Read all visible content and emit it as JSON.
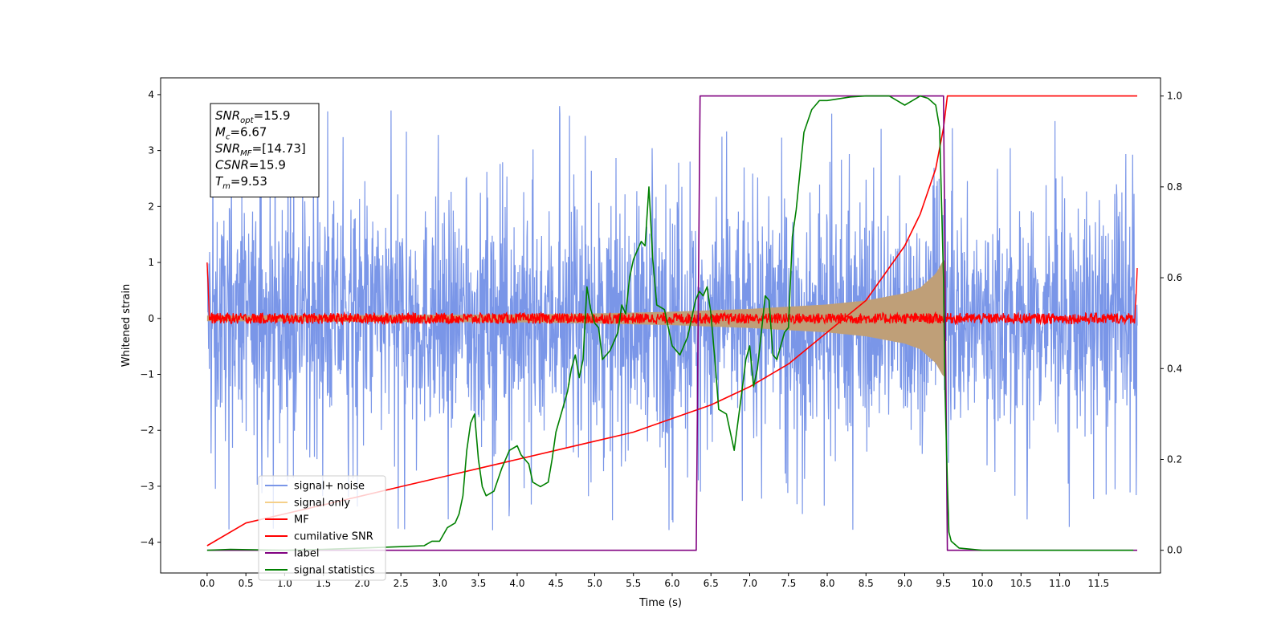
{
  "chart_data": {
    "type": "line",
    "xlabel": "Time (s)",
    "ylabel": "Whitened strain",
    "xlim": [
      -0.6,
      12.3
    ],
    "ylim": [
      -4.55,
      4.3
    ],
    "y2lim": [
      -0.05,
      1.04
    ],
    "x_ticks": [
      "0.0",
      "0.5",
      "1.0",
      "1.5",
      "2.0",
      "2.5",
      "3.0",
      "3.5",
      "4.0",
      "4.5",
      "5.0",
      "5.5",
      "6.0",
      "6.5",
      "7.0",
      "7.5",
      "8.0",
      "8.5",
      "9.0",
      "9.5",
      "10.0",
      "10.5",
      "11.0",
      "11.5"
    ],
    "y_ticks": [
      "4",
      "3",
      "2",
      "1",
      "0",
      "−1",
      "−2",
      "−3",
      "−4"
    ],
    "y2_ticks": [
      "1.0",
      "0.8",
      "0.6",
      "0.4",
      "0.2",
      "0.0"
    ],
    "grid": false,
    "legend_position": "lower-left",
    "annotation": {
      "lines": [
        {
          "base": "SNR",
          "sub": "opt",
          "rest": "=15.9"
        },
        {
          "base": "M",
          "sub": "c",
          "rest": "=6.67"
        },
        {
          "base": "SNR",
          "sub": "MF",
          "rest": "=[14.73]"
        },
        {
          "base": "CSNR",
          "sub": "",
          "rest": "=15.9"
        },
        {
          "base": "T",
          "sub": "m",
          "rest": "=9.53"
        }
      ]
    },
    "series": [
      {
        "name": "signal+ noise",
        "color": "#7a96e8",
        "axis": "left",
        "kind": "noise",
        "x_range": [
          0.0,
          12.0
        ],
        "amplitude_typical": 1.0,
        "amplitude_peak": 3.9
      },
      {
        "name": "signal only",
        "color": "#f5d08a",
        "fill_color": "#bf9f78",
        "axis": "left",
        "kind": "chirp",
        "envelope_x": [
          0.0,
          2.0,
          4.0,
          5.0,
          6.0,
          7.0,
          8.0,
          8.5,
          9.0,
          9.2,
          9.4,
          9.5,
          9.53
        ],
        "envelope_y": [
          0.05,
          0.06,
          0.07,
          0.09,
          0.12,
          0.17,
          0.25,
          0.32,
          0.45,
          0.55,
          0.8,
          1.05,
          1.0
        ]
      },
      {
        "name": "MF",
        "color": "#ff0000",
        "axis": "left",
        "kind": "mf",
        "x_range": [
          0.0,
          12.0
        ],
        "amplitude_typical": 0.08,
        "edge_values": [
          1.0,
          0.9
        ]
      },
      {
        "name": "cumilative SNR",
        "color": "#ff0000",
        "axis": "right",
        "x": [
          0.0,
          0.5,
          1.0,
          1.5,
          2.0,
          2.5,
          3.0,
          3.5,
          4.0,
          4.5,
          5.0,
          5.5,
          6.0,
          6.5,
          7.0,
          7.5,
          8.0,
          8.5,
          9.0,
          9.2,
          9.4,
          9.5,
          9.55,
          12.0
        ],
        "y": [
          0.01,
          0.06,
          0.08,
          0.1,
          0.12,
          0.14,
          0.16,
          0.18,
          0.2,
          0.22,
          0.24,
          0.26,
          0.29,
          0.32,
          0.36,
          0.41,
          0.48,
          0.55,
          0.67,
          0.74,
          0.84,
          0.93,
          1.0,
          1.0
        ]
      },
      {
        "name": "label",
        "color": "#800080",
        "axis": "right",
        "x": [
          0.0,
          6.31,
          6.36,
          9.5,
          9.55,
          12.0
        ],
        "y": [
          0.0,
          0.0,
          1.0,
          1.0,
          0.0,
          0.0
        ]
      },
      {
        "name": "signal statistics",
        "color": "#008000",
        "axis": "right",
        "x": [
          0.0,
          0.3,
          1.0,
          1.5,
          2.0,
          2.5,
          2.8,
          2.9,
          3.0,
          3.1,
          3.2,
          3.25,
          3.3,
          3.35,
          3.4,
          3.45,
          3.5,
          3.55,
          3.6,
          3.7,
          3.8,
          3.9,
          4.0,
          4.05,
          4.1,
          4.15,
          4.2,
          4.3,
          4.4,
          4.45,
          4.5,
          4.6,
          4.65,
          4.7,
          4.75,
          4.8,
          4.85,
          4.9,
          4.95,
          5.0,
          5.05,
          5.1,
          5.2,
          5.3,
          5.35,
          5.4,
          5.45,
          5.5,
          5.55,
          5.6,
          5.65,
          5.7,
          5.75,
          5.8,
          5.9,
          6.0,
          6.1,
          6.2,
          6.25,
          6.3,
          6.35,
          6.4,
          6.45,
          6.5,
          6.55,
          6.6,
          6.7,
          6.8,
          6.9,
          6.95,
          7.0,
          7.05,
          7.1,
          7.15,
          7.2,
          7.25,
          7.3,
          7.35,
          7.45,
          7.5,
          7.55,
          7.6,
          7.7,
          7.8,
          7.9,
          8.0,
          8.3,
          8.5,
          8.8,
          9.0,
          9.1,
          9.2,
          9.3,
          9.4,
          9.45,
          9.5,
          9.52,
          9.55,
          9.57,
          9.6,
          9.7,
          10.0,
          11.0,
          11.95
        ],
        "y": [
          0.0,
          0.002,
          0.0,
          0.002,
          0.005,
          0.008,
          0.01,
          0.02,
          0.02,
          0.05,
          0.06,
          0.08,
          0.12,
          0.22,
          0.28,
          0.3,
          0.2,
          0.14,
          0.12,
          0.13,
          0.18,
          0.22,
          0.23,
          0.21,
          0.2,
          0.19,
          0.15,
          0.14,
          0.15,
          0.2,
          0.26,
          0.32,
          0.35,
          0.4,
          0.43,
          0.38,
          0.42,
          0.58,
          0.53,
          0.5,
          0.49,
          0.42,
          0.44,
          0.48,
          0.54,
          0.52,
          0.6,
          0.64,
          0.66,
          0.68,
          0.67,
          0.8,
          0.64,
          0.54,
          0.53,
          0.45,
          0.43,
          0.47,
          0.51,
          0.55,
          0.57,
          0.56,
          0.58,
          0.52,
          0.42,
          0.31,
          0.3,
          0.22,
          0.35,
          0.42,
          0.45,
          0.36,
          0.4,
          0.48,
          0.56,
          0.55,
          0.43,
          0.42,
          0.48,
          0.49,
          0.69,
          0.75,
          0.92,
          0.97,
          0.99,
          0.99,
          0.998,
          1.0,
          1.0,
          0.98,
          0.99,
          1.0,
          0.995,
          0.98,
          0.93,
          0.6,
          0.35,
          0.15,
          0.04,
          0.02,
          0.005,
          0.0,
          0.0,
          0.0
        ]
      }
    ]
  }
}
